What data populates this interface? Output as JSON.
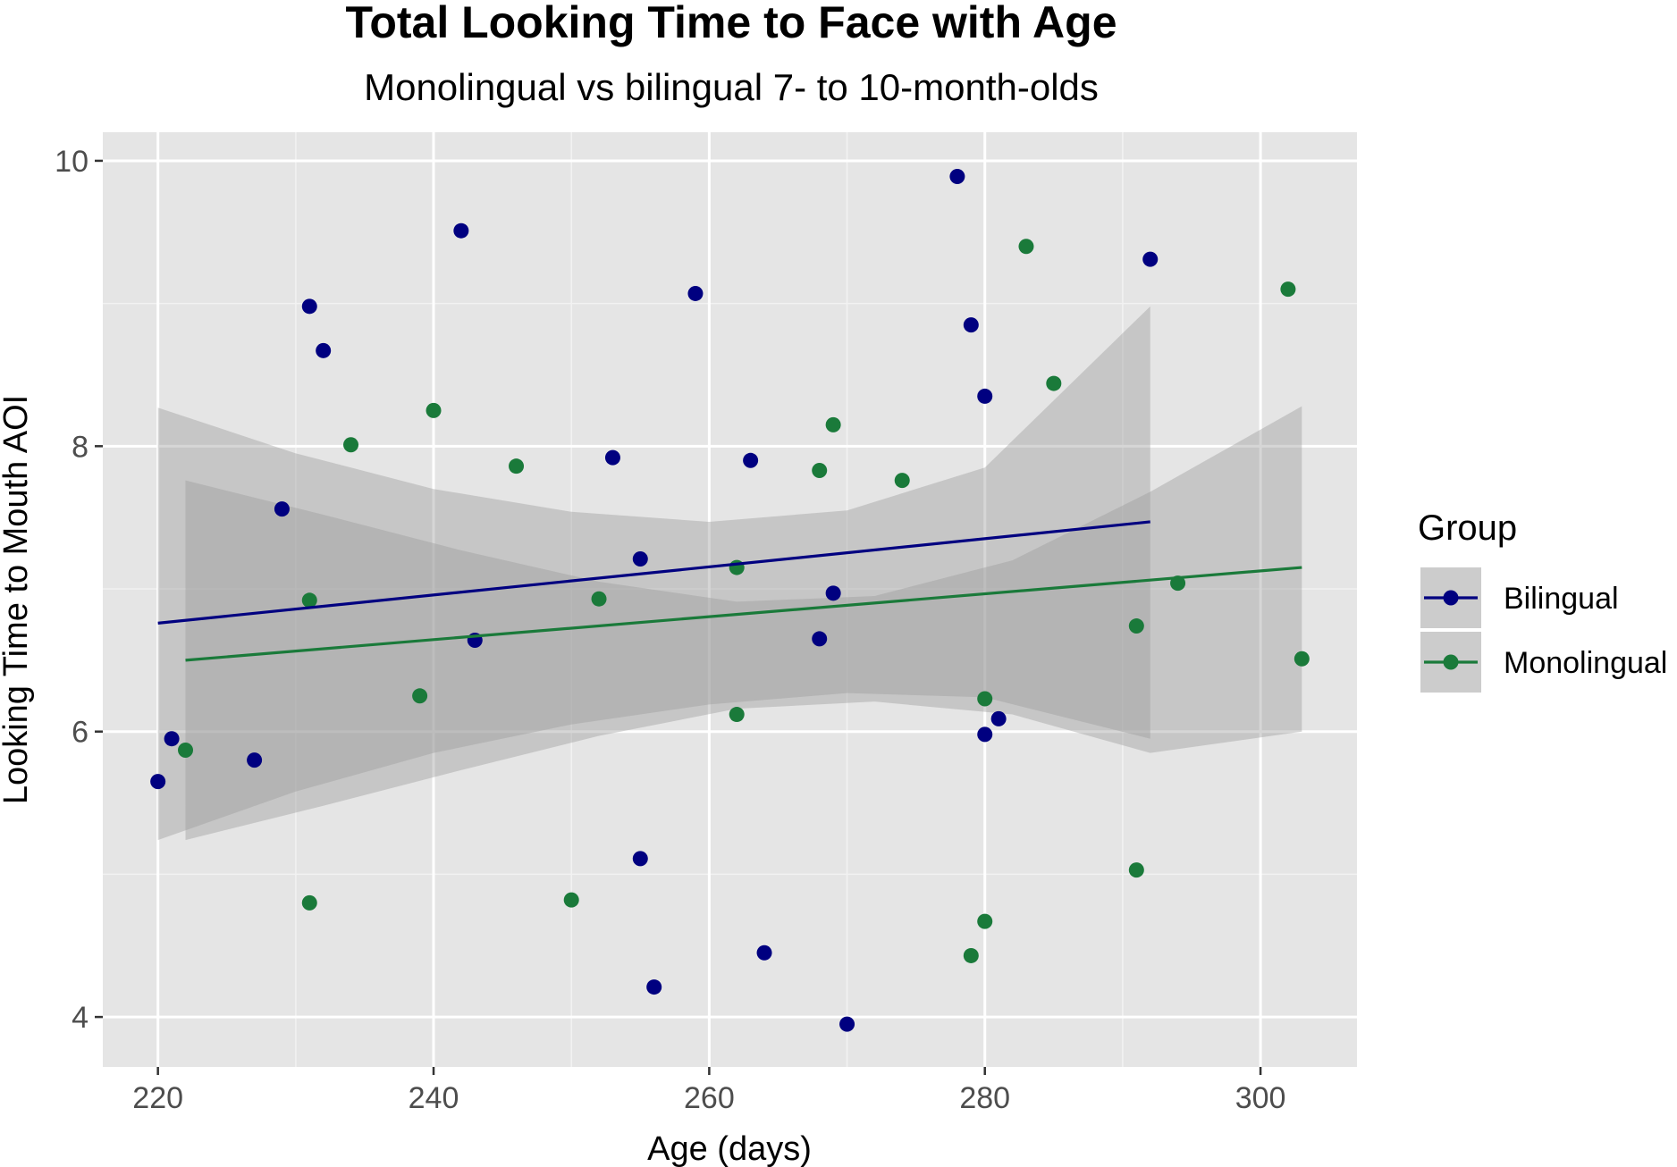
{
  "chart_data": {
    "type": "scatter",
    "title": "Total Looking Time to Face with Age",
    "subtitle": "Monolingual vs bilingual 7- to 10-month-olds",
    "xlabel": "Age (days)",
    "ylabel": "Looking Time to Mouth AOI",
    "xlim": [
      216,
      307
    ],
    "ylim": [
      3.65,
      10.2
    ],
    "x_ticks": [
      220,
      240,
      260,
      280,
      300
    ],
    "x_tick_labels": [
      "220",
      "240",
      "260",
      "280",
      "300"
    ],
    "y_ticks": [
      4,
      6,
      8,
      10
    ],
    "y_tick_labels": [
      "4",
      "6",
      "8",
      "10"
    ],
    "grid": true,
    "background": "#e5e5e5",
    "legend": {
      "title": "Group",
      "position": "right"
    },
    "series": [
      {
        "name": "Bilingual",
        "color": "#000080",
        "points": [
          [
            220,
            5.65
          ],
          [
            221,
            5.95
          ],
          [
            227,
            5.8
          ],
          [
            229,
            7.56
          ],
          [
            231,
            8.98
          ],
          [
            232,
            8.67
          ],
          [
            242,
            9.51
          ],
          [
            243,
            6.64
          ],
          [
            253,
            7.92
          ],
          [
            255,
            7.21
          ],
          [
            255,
            5.11
          ],
          [
            256,
            4.21
          ],
          [
            259,
            9.07
          ],
          [
            263,
            7.9
          ],
          [
            264,
            4.45
          ],
          [
            268,
            6.65
          ],
          [
            269,
            6.97
          ],
          [
            270,
            3.95
          ],
          [
            278,
            9.89
          ],
          [
            279,
            8.85
          ],
          [
            280,
            8.35
          ],
          [
            280,
            5.98
          ],
          [
            281,
            6.09
          ],
          [
            292,
            9.31
          ]
        ],
        "fit": {
          "x": [
            220,
            292
          ],
          "y": [
            6.76,
            7.47
          ]
        },
        "ci": [
          [
            220,
            8.27,
            5.24
          ],
          [
            230,
            7.95,
            5.58
          ],
          [
            240,
            7.7,
            5.85
          ],
          [
            250,
            7.54,
            6.05
          ],
          [
            260,
            7.47,
            6.19
          ],
          [
            270,
            7.55,
            6.27
          ],
          [
            280,
            7.85,
            6.24
          ],
          [
            292,
            8.98,
            5.95
          ]
        ]
      },
      {
        "name": "Monolingual",
        "color": "#1a7a3a",
        "points": [
          [
            222,
            5.87
          ],
          [
            231,
            6.92
          ],
          [
            231,
            4.8
          ],
          [
            234,
            8.01
          ],
          [
            239,
            6.25
          ],
          [
            240,
            8.25
          ],
          [
            246,
            7.86
          ],
          [
            250,
            4.82
          ],
          [
            252,
            6.93
          ],
          [
            262,
            7.15
          ],
          [
            262,
            6.12
          ],
          [
            268,
            7.83
          ],
          [
            269,
            8.15
          ],
          [
            274,
            7.76
          ],
          [
            279,
            4.43
          ],
          [
            280,
            6.23
          ],
          [
            280,
            4.67
          ],
          [
            283,
            9.4
          ],
          [
            285,
            8.44
          ],
          [
            291,
            6.74
          ],
          [
            291,
            5.03
          ],
          [
            294,
            7.04
          ],
          [
            302,
            9.1
          ],
          [
            303,
            6.51
          ]
        ],
        "fit": {
          "x": [
            222,
            303
          ],
          "y": [
            6.5,
            7.15
          ]
        },
        "ci": [
          [
            222,
            7.76,
            5.24
          ],
          [
            232,
            7.52,
            5.48
          ],
          [
            242,
            7.27,
            5.73
          ],
          [
            252,
            7.05,
            5.97
          ],
          [
            262,
            6.91,
            6.16
          ],
          [
            272,
            6.95,
            6.21
          ],
          [
            282,
            7.2,
            6.12
          ],
          [
            292,
            7.68,
            5.85
          ],
          [
            303,
            8.28,
            6.0
          ]
        ]
      }
    ]
  }
}
